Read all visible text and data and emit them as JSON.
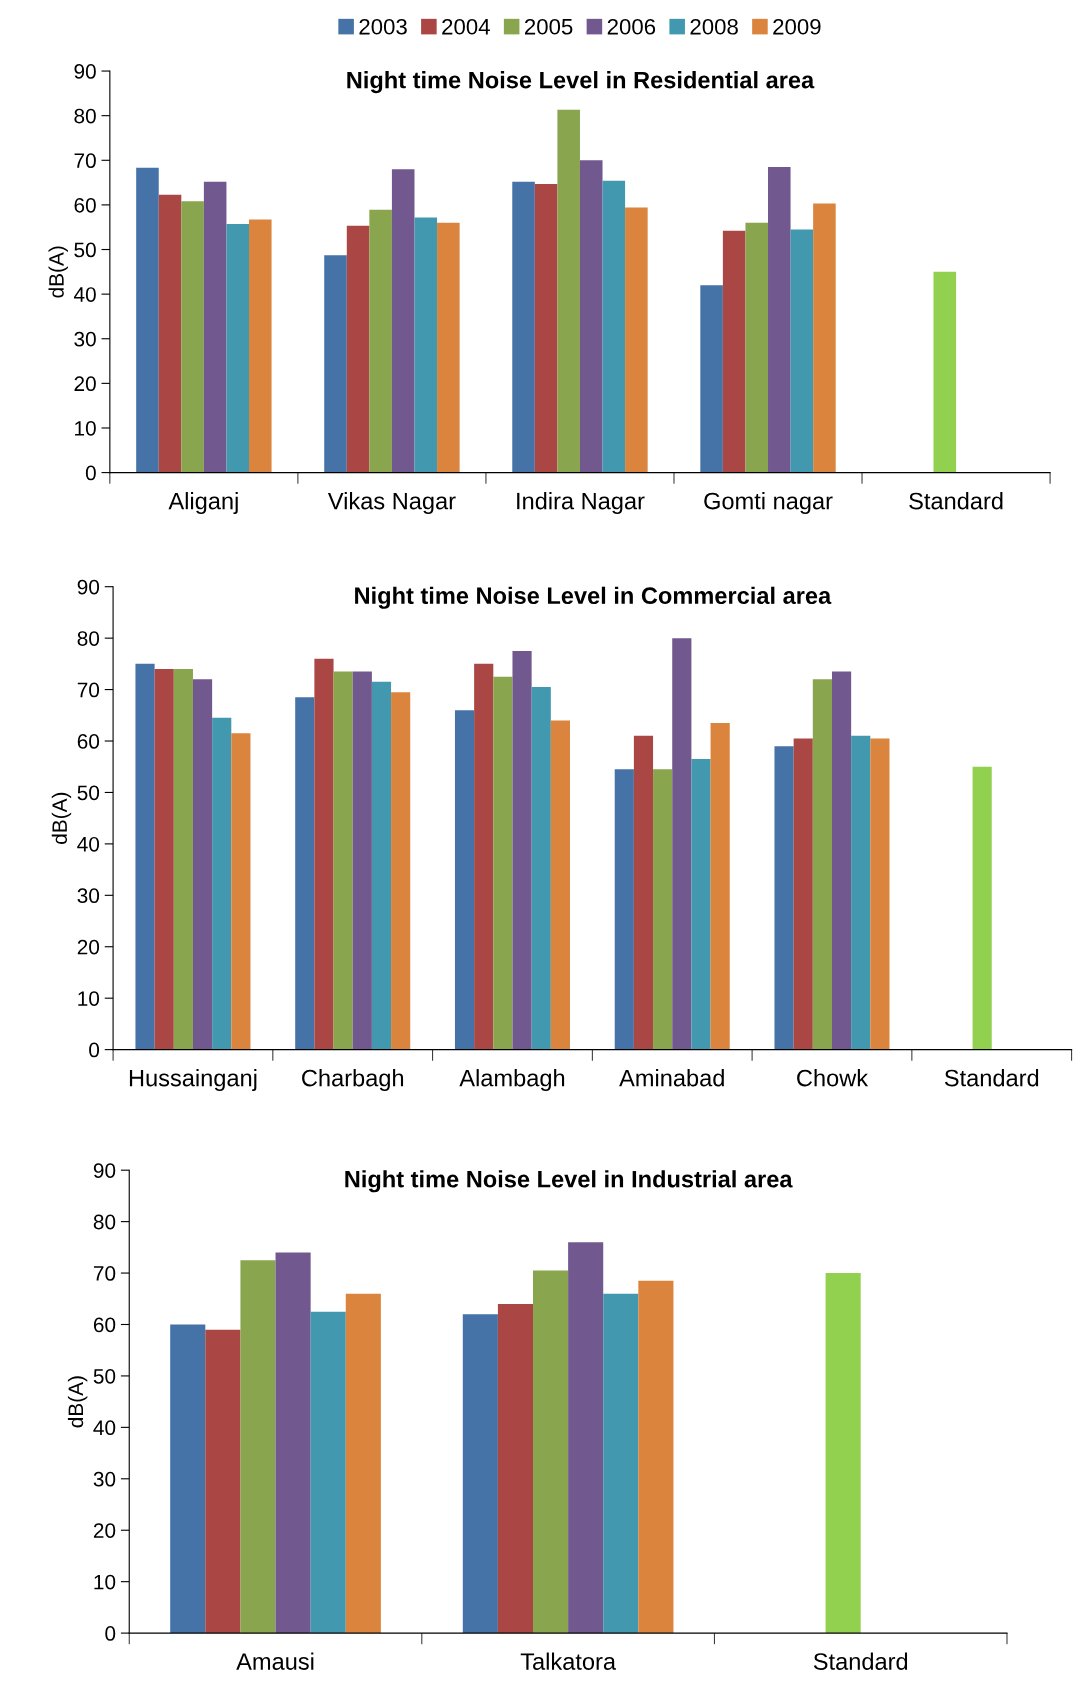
{
  "chart_data": [
    {
      "type": "bar",
      "title": "Night time Noise Level in Residential area",
      "ylabel": "dB(A)",
      "categories": [
        "Aliganj",
        "Vikas Nagar",
        "Indira Nagar",
        "Gomti nagar",
        "Standard"
      ],
      "ylim": [
        0,
        90
      ],
      "yticks": [
        0,
        10,
        20,
        30,
        40,
        50,
        60,
        70,
        80,
        90
      ],
      "grid": false,
      "legend": "top",
      "series": [
        {
          "name": "2003",
          "color": "#4572a7",
          "values": [
            68.3,
            48.7,
            65.2,
            42,
            null
          ]
        },
        {
          "name": "2004",
          "color": "#aa4643",
          "values": [
            62.3,
            55.3,
            64.7,
            54.2,
            null
          ]
        },
        {
          "name": "2005",
          "color": "#89a54e",
          "colors": [
            "#89a54e",
            "#89a54e",
            "#89a54e",
            "#89a54e",
            "#92d050"
          ],
          "values": [
            60.8,
            58.9,
            81.3,
            56,
            45
          ]
        },
        {
          "name": "2006",
          "color": "#71588f",
          "values": [
            65.2,
            68,
            70,
            68.5,
            null
          ]
        },
        {
          "name": "2008",
          "color": "#4198af",
          "values": [
            55.7,
            57.2,
            65.4,
            54.5,
            null
          ]
        },
        {
          "name": "2009",
          "color": "#db843d",
          "values": [
            56.7,
            56,
            59.4,
            60.3,
            null
          ]
        }
      ]
    },
    {
      "type": "bar",
      "title": "Night time Noise Level in Commercial area",
      "ylabel": "dB(A)",
      "categories": [
        "Hussainganj",
        "Charbagh",
        "Alambagh",
        "Aminabad",
        "Chowk",
        "Standard"
      ],
      "ylim": [
        0,
        90
      ],
      "yticks": [
        0,
        10,
        20,
        30,
        40,
        50,
        60,
        70,
        80,
        90
      ],
      "grid": false,
      "series": [
        {
          "name": "2003",
          "color": "#4572a7",
          "values": [
            75,
            68.5,
            66,
            54.5,
            59,
            null
          ]
        },
        {
          "name": "2004",
          "color": "#aa4643",
          "values": [
            74,
            76,
            75,
            61,
            60.5,
            null
          ]
        },
        {
          "name": "2005",
          "color": "#89a54e",
          "colors": [
            "#89a54e",
            "#89a54e",
            "#89a54e",
            "#89a54e",
            "#89a54e",
            "#92d050"
          ],
          "values": [
            74,
            73.5,
            72.5,
            54.5,
            72,
            55
          ]
        },
        {
          "name": "2006",
          "color": "#71588f",
          "values": [
            72,
            73.5,
            77.5,
            80,
            73.5,
            null
          ]
        },
        {
          "name": "2008",
          "color": "#4198af",
          "values": [
            64.5,
            71.5,
            70.5,
            56.5,
            61,
            null
          ]
        },
        {
          "name": "2009",
          "color": "#db843d",
          "values": [
            61.5,
            69.5,
            64,
            63.5,
            60.5,
            null
          ]
        }
      ]
    },
    {
      "type": "bar",
      "title": "Night time Noise Level in Industrial area",
      "ylabel": "dB(A)",
      "categories": [
        "Amausi",
        "Talkatora",
        "Standard"
      ],
      "ylim": [
        0,
        90
      ],
      "yticks": [
        0,
        10,
        20,
        30,
        40,
        50,
        60,
        70,
        80,
        90
      ],
      "grid": false,
      "series": [
        {
          "name": "2003",
          "color": "#4572a7",
          "values": [
            60,
            62,
            null
          ]
        },
        {
          "name": "2004",
          "color": "#aa4643",
          "values": [
            59,
            64,
            null
          ]
        },
        {
          "name": "2005",
          "color": "#89a54e",
          "colors": [
            "#89a54e",
            "#89a54e",
            "#92d050"
          ],
          "values": [
            72.5,
            70.5,
            70
          ]
        },
        {
          "name": "2006",
          "color": "#71588f",
          "values": [
            74,
            76,
            null
          ]
        },
        {
          "name": "2008",
          "color": "#4198af",
          "values": [
            62.5,
            66,
            null
          ]
        },
        {
          "name": "2009",
          "color": "#db843d",
          "values": [
            66,
            68.5,
            null
          ]
        }
      ]
    }
  ]
}
